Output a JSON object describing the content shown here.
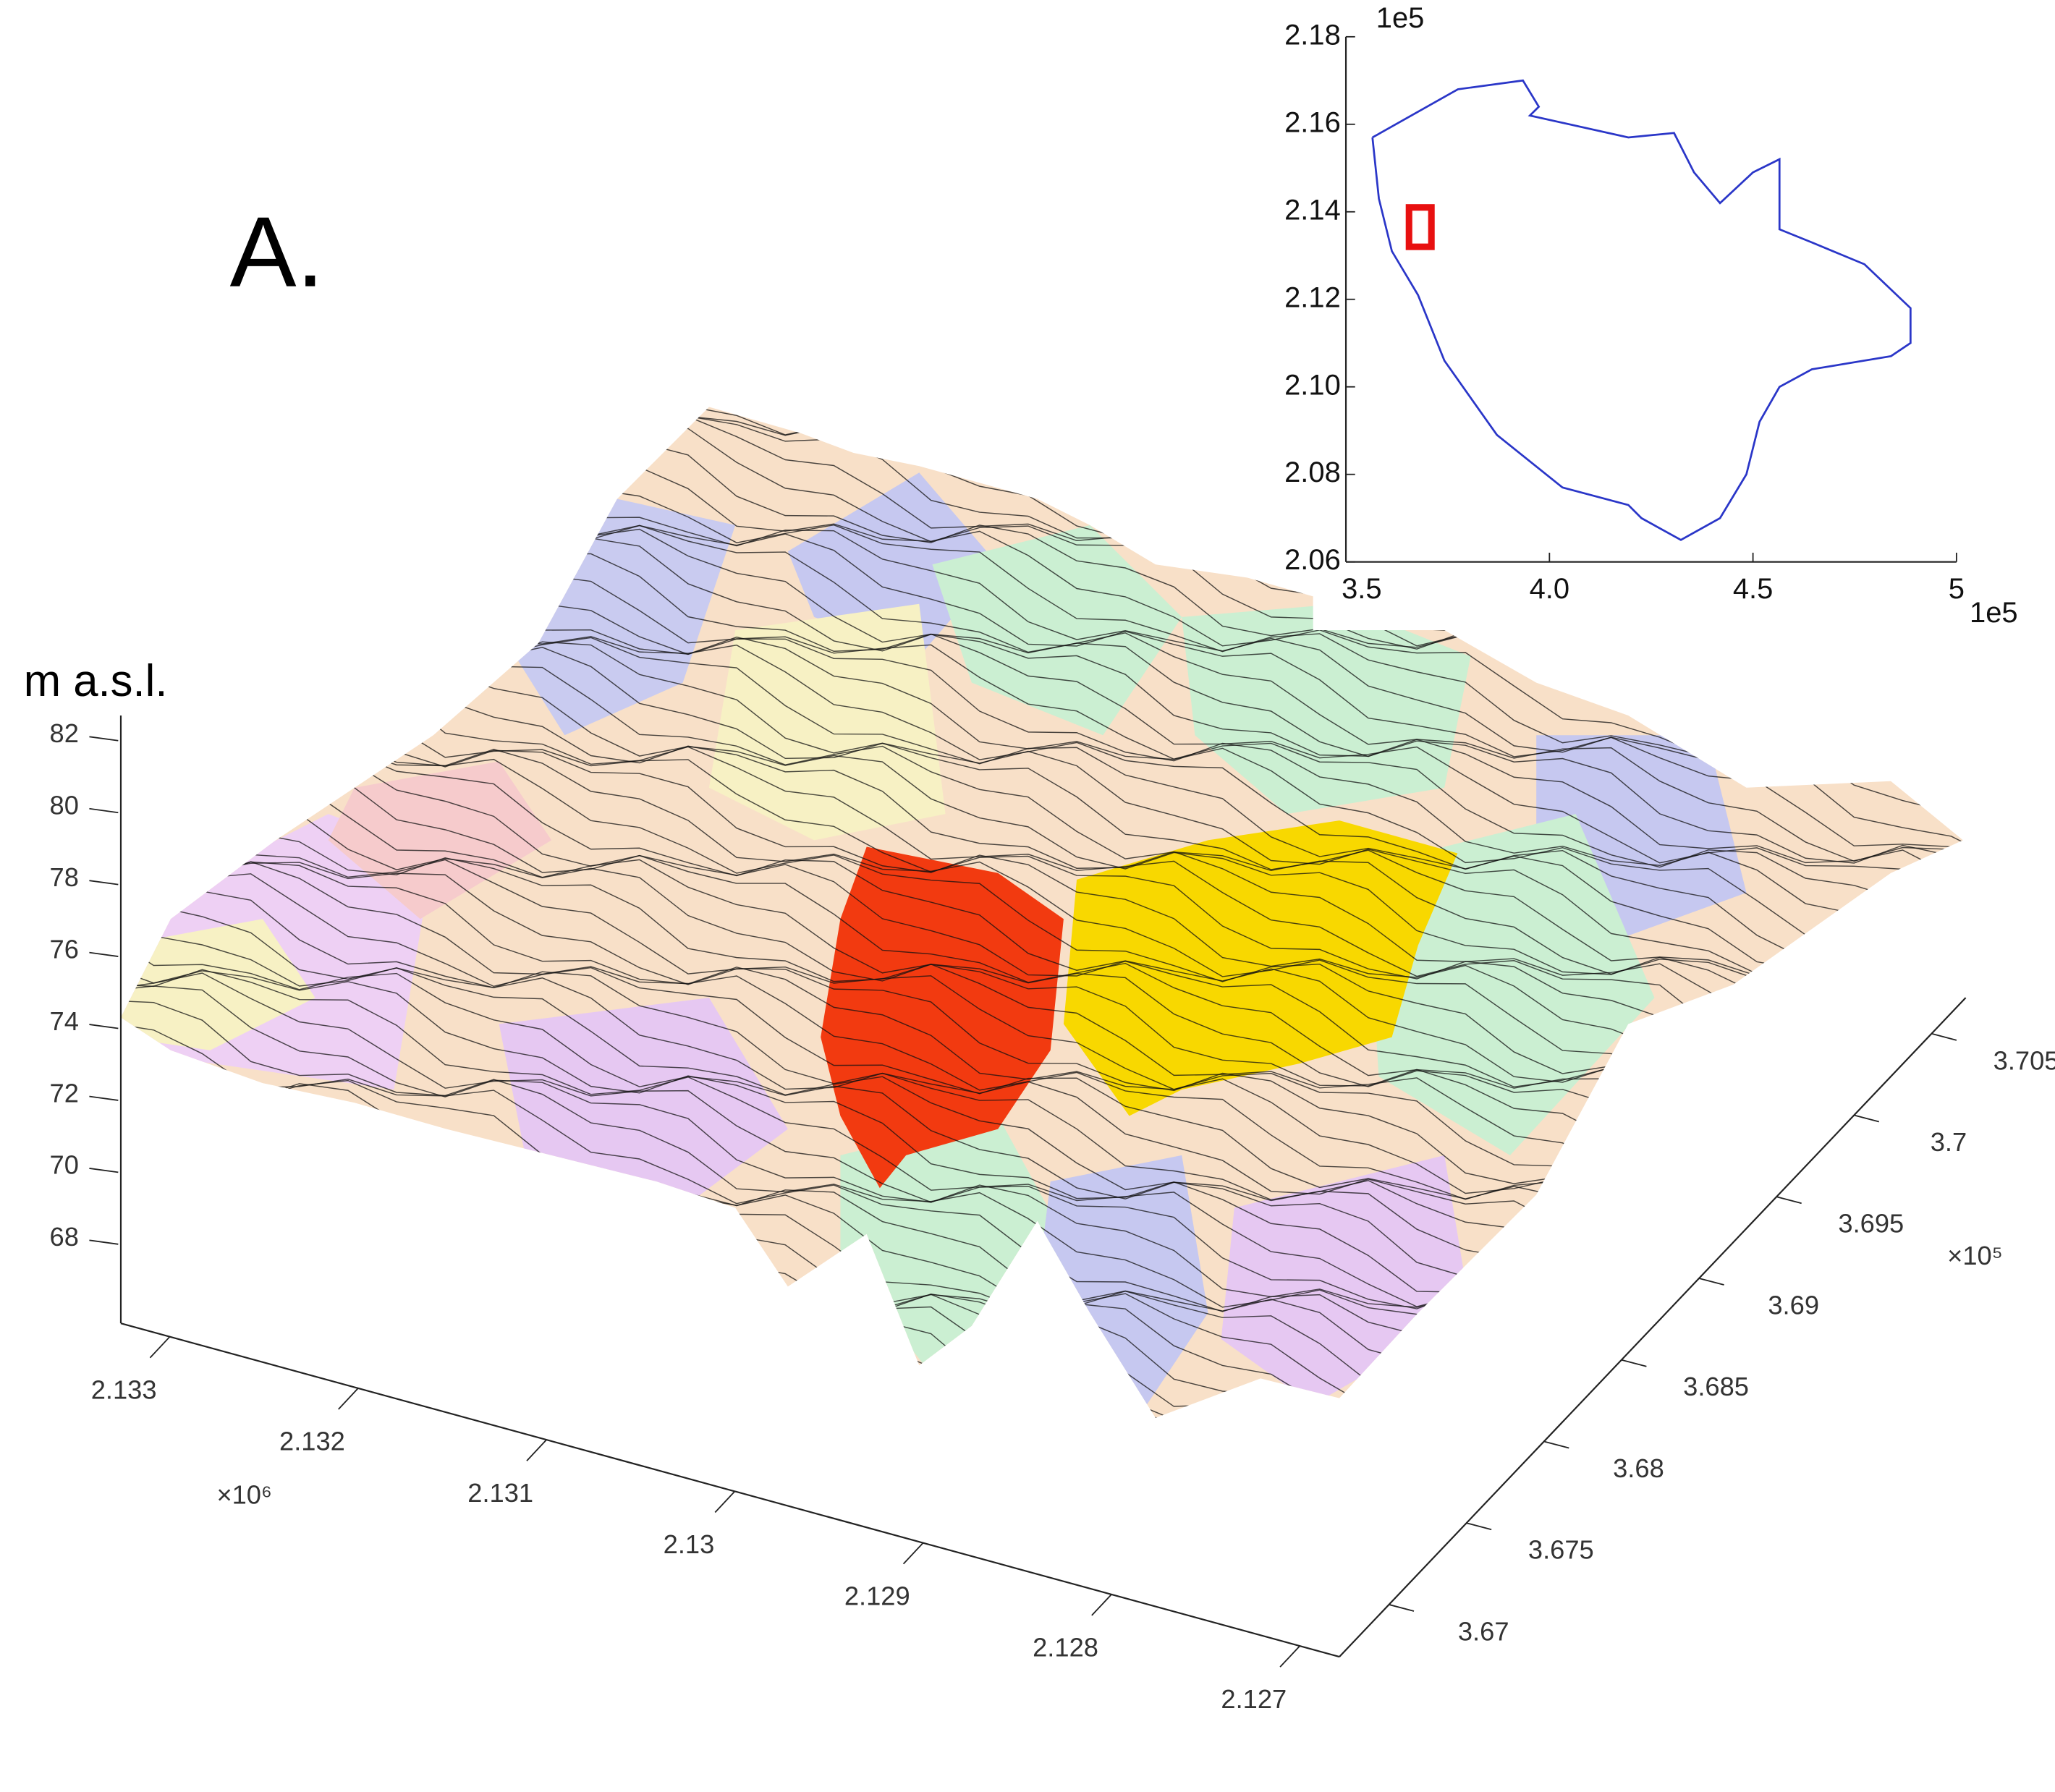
{
  "chart_data": [
    {
      "type": "surface",
      "title": "A.",
      "z_label": "m a.s.l.",
      "zlim": [
        65.8,
        82.7
      ],
      "zticks": [
        68,
        70,
        72,
        74,
        76,
        78,
        80,
        82
      ],
      "xlim": [
        2.13326,
        2.12679
      ],
      "xticks": [
        2.133,
        2.132,
        2.131,
        2.13,
        2.129,
        2.128,
        2.127
      ],
      "x_multiplier": "×10⁶",
      "ylim": [
        3.6668,
        3.7072
      ],
      "yticks": [
        3.67,
        3.675,
        3.68,
        3.685,
        3.69,
        3.695,
        3.7,
        3.705
      ],
      "y_multiplier": "×10⁵"
    },
    {
      "type": "line",
      "xlim": [
        3.5,
        5
      ],
      "ylim": [
        2.06,
        2.18
      ],
      "xticks": [
        3.5,
        {
          "value": 4,
          "label": "4.0"
        },
        4.5,
        5
      ],
      "yticks": [
        2.18,
        2.16,
        2.14,
        2.12,
        {
          "value": 2.1,
          "label": "2.10"
        },
        2.08,
        2.06
      ],
      "x_offset_label": "1e5",
      "y_offset_label": "1e5",
      "series": [
        {
          "color": "#2a36c8",
          "x": [
            3.565,
            3.775,
            3.935,
            3.974,
            3.952,
            4.194,
            4.306,
            4.355,
            4.419,
            4.5,
            4.565,
            4.565,
            4.645,
            4.774,
            4.887,
            4.887,
            4.839,
            4.645,
            4.565,
            4.516,
            4.484,
            4.419,
            4.323,
            4.226,
            4.194,
            4.032,
            3.871,
            3.742,
            3.677,
            3.613,
            3.581,
            3.565
          ],
          "y": [
            2.157,
            2.168,
            2.17,
            2.164,
            2.162,
            2.157,
            2.158,
            2.149,
            2.142,
            2.149,
            2.152,
            2.136,
            2.133,
            2.128,
            2.118,
            2.11,
            2.107,
            2.104,
            2.1,
            2.092,
            2.08,
            2.07,
            2.065,
            2.07,
            2.073,
            2.077,
            2.089,
            2.106,
            2.121,
            2.131,
            2.143,
            2.157
          ]
        }
      ],
      "highlight": {
        "color": "#e81010",
        "x": [
          3.655,
          3.71
        ],
        "y": [
          2.132,
          2.141
        ]
      }
    }
  ]
}
